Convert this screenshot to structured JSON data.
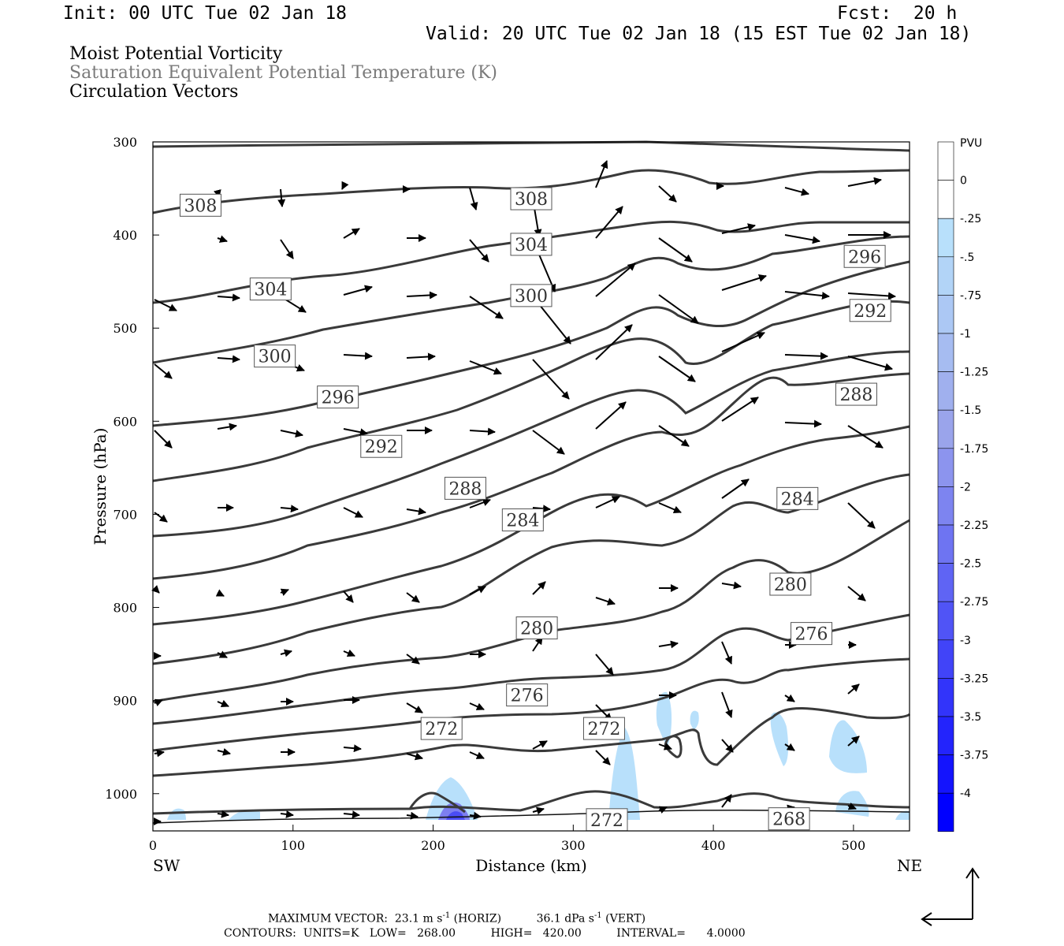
{
  "header": {
    "init": "Init: 00 UTC Tue 02 Jan 18",
    "fcst": "Fcst:  20 h",
    "valid": "Valid: 20 UTC Tue 02 Jan 18 (15 EST Tue 02 Jan 18)"
  },
  "fields": {
    "f1": "Moist Potential Vorticity",
    "f2": "Saturation Equivalent Potential Temperature (K)",
    "f3": "Circulation Vectors"
  },
  "footer": {
    "max_vector_label": "MAXIMUM VECTOR:",
    "max_vector_horiz": "23.1 m s",
    "max_vector_horiz_unit": "(HORIZ)",
    "max_vector_vert": "36.1 dPa s",
    "max_vector_vert_unit": "(VERT)",
    "exp": "-1",
    "contours": "CONTOURS:  UNITS=K   LOW=   268.00          HIGH=   420.00          INTERVAL=      4.0000"
  },
  "colors": {
    "contour": "#3a3a3a",
    "pv_light": "#b8e0fb",
    "pv_dark": "#0000ff"
  },
  "chart_data": {
    "type": "cross-section",
    "xlabel": "Distance (km)",
    "ylabel": "Pressure (hPa)",
    "xlim": [
      0,
      540
    ],
    "ylim": [
      1040,
      300
    ],
    "x_ticks": [
      0,
      100,
      200,
      300,
      400,
      500
    ],
    "y_ticks": [
      300,
      400,
      500,
      600,
      700,
      800,
      900,
      1000
    ],
    "x_end_labels": {
      "left": "SW",
      "right": "NE"
    },
    "colorbar": {
      "unit": "PVU",
      "labels": [
        "0",
        "-.25",
        "-.5",
        "-.75",
        "-1",
        "-1.25",
        "-1.5",
        "-1.75",
        "-2",
        "-2.25",
        "-2.5",
        "-2.75",
        "-3",
        "-3.25",
        "-3.5",
        "-3.75",
        "-4"
      ],
      "colors": [
        "#ffffff",
        "#ffffff",
        "#b8e0fb",
        "#b2d4f7",
        "#acc8f4",
        "#a6bcf1",
        "#a0b0ee",
        "#9aa4eb",
        "#8c94ee",
        "#7d84f0",
        "#6e74f2",
        "#5f64f4",
        "#5054f6",
        "#4144f8",
        "#3234fa",
        "#2324fc",
        "#1414fd",
        "#0000ff"
      ]
    },
    "contour_labels": [
      {
        "value": "308",
        "x": 34,
        "p": 368
      },
      {
        "value": "308",
        "x": 270,
        "p": 361
      },
      {
        "value": "304",
        "x": 270,
        "p": 410
      },
      {
        "value": "304",
        "x": 84,
        "p": 458
      },
      {
        "value": "300",
        "x": 270,
        "p": 465
      },
      {
        "value": "300",
        "x": 87,
        "p": 530
      },
      {
        "value": "296",
        "x": 508,
        "p": 423
      },
      {
        "value": "296",
        "x": 132,
        "p": 574
      },
      {
        "value": "292",
        "x": 512,
        "p": 481
      },
      {
        "value": "292",
        "x": 163,
        "p": 627
      },
      {
        "value": "288",
        "x": 502,
        "p": 571
      },
      {
        "value": "288",
        "x": 223,
        "p": 672
      },
      {
        "value": "284",
        "x": 460,
        "p": 683
      },
      {
        "value": "284",
        "x": 264,
        "p": 706
      },
      {
        "value": "280",
        "x": 455,
        "p": 775
      },
      {
        "value": "280",
        "x": 274,
        "p": 822
      },
      {
        "value": "276",
        "x": 470,
        "p": 828
      },
      {
        "value": "276",
        "x": 267,
        "p": 894
      },
      {
        "value": "272",
        "x": 206,
        "p": 930
      },
      {
        "value": "272",
        "x": 322,
        "p": 930
      },
      {
        "value": "272",
        "x": 324,
        "p": 1028
      },
      {
        "value": "268",
        "x": 454,
        "p": 1027
      }
    ]
  }
}
